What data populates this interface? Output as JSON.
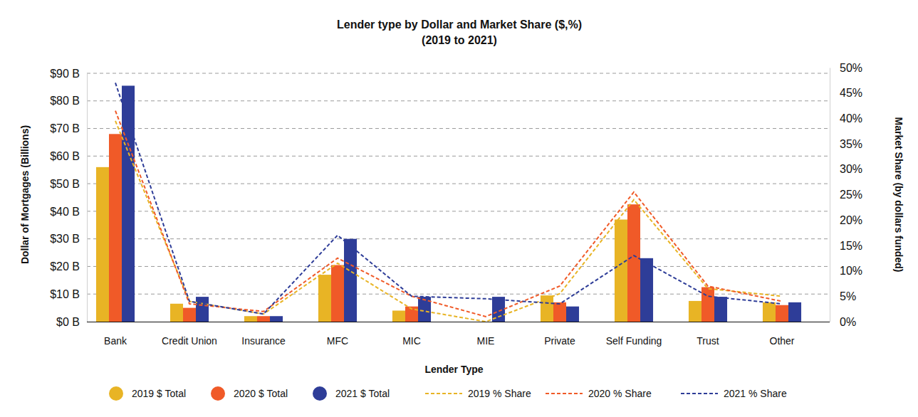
{
  "chart_data": {
    "type": "bar",
    "title": "Lender type by Dollar and Market Share ($,%)",
    "subtitle": "(2019 to 2021)",
    "x_label": "Lender Type",
    "y_label": "Dollar of Mortgages (Billions)",
    "y2_label": "Market Share (by dollars funded)",
    "categories": [
      "Bank",
      "Credit Union",
      "Insurance",
      "MFC",
      "MIC",
      "MIE",
      "Private",
      "Self Funding",
      "Trust",
      "Other"
    ],
    "ylim": [
      0,
      90
    ],
    "yticks": [
      {
        "value": 0,
        "label": "$0 B"
      },
      {
        "value": 10,
        "label": "$10 B"
      },
      {
        "value": 20,
        "label": "$20 B"
      },
      {
        "value": 30,
        "label": "$30 B"
      },
      {
        "value": 40,
        "label": "$40 B"
      },
      {
        "value": 50,
        "label": "$50 B"
      },
      {
        "value": 60,
        "label": "$60 B"
      },
      {
        "value": 70,
        "label": "$70 B"
      },
      {
        "value": 80,
        "label": "$80 B"
      },
      {
        "value": 90,
        "label": "$90 B"
      }
    ],
    "y2lim": [
      0,
      50
    ],
    "y2ticks": [
      {
        "value": 0,
        "label": "0%"
      },
      {
        "value": 5,
        "label": "5%"
      },
      {
        "value": 10,
        "label": "10%"
      },
      {
        "value": 15,
        "label": "15%"
      },
      {
        "value": 20,
        "label": "20%"
      },
      {
        "value": 25,
        "label": "25%"
      },
      {
        "value": 30,
        "label": "30%"
      },
      {
        "value": 35,
        "label": "35%"
      },
      {
        "value": 40,
        "label": "40%"
      },
      {
        "value": 45,
        "label": "45%"
      },
      {
        "value": 50,
        "label": "50%"
      }
    ],
    "grid": true,
    "legend": "bottom",
    "series": [
      {
        "name": "2019 $ Total",
        "type": "bar",
        "color": "#e8b425",
        "marker": "circle",
        "values": [
          56,
          6.5,
          2,
          17,
          4,
          0,
          9.5,
          37,
          7.5,
          7
        ]
      },
      {
        "name": "2020 $ Total",
        "type": "bar",
        "color": "#f05a28",
        "marker": "circle",
        "values": [
          68,
          5,
          2,
          20.5,
          5.5,
          0,
          7,
          42.5,
          12.5,
          6
        ]
      },
      {
        "name": "2021 $ Total",
        "type": "bar",
        "color": "#2e3d98",
        "marker": "circle",
        "values": [
          85.5,
          9,
          2,
          30,
          9,
          9,
          5.5,
          23,
          9,
          7
        ]
      },
      {
        "name": "2019 % Share",
        "type": "line",
        "axis": "y2",
        "color": "#e8b425",
        "line_style": "dashed",
        "values": [
          39.5,
          4,
          1.5,
          11.5,
          2.5,
          0,
          5.5,
          24,
          6.5,
          5
        ]
      },
      {
        "name": "2020 % Share",
        "type": "line",
        "axis": "y2",
        "color": "#f05a28",
        "line_style": "dashed",
        "values": [
          41.5,
          3.5,
          2,
          12.5,
          5,
          1,
          7,
          25.5,
          7,
          4
        ]
      },
      {
        "name": "2021 % Share",
        "type": "line",
        "axis": "y2",
        "color": "#2e3d98",
        "line_style": "dashed",
        "values": [
          47,
          4,
          1.5,
          17,
          5,
          4.5,
          3.5,
          13,
          5,
          3.5
        ]
      }
    ]
  }
}
